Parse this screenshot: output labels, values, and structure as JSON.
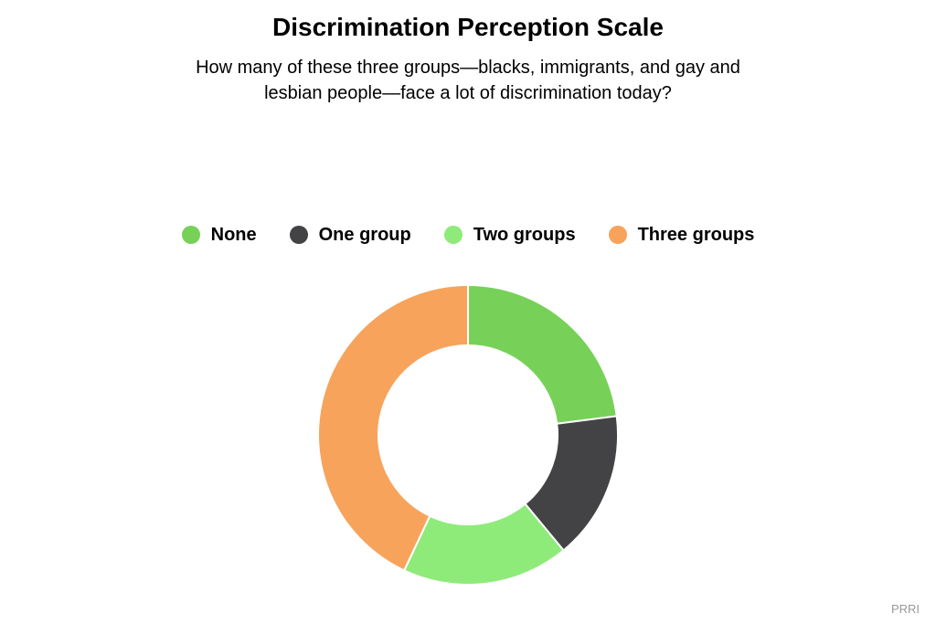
{
  "chart_data": {
    "type": "pie",
    "title": "Discrimination Perception Scale",
    "subtitle": "How many of these three groups—blacks, immigrants, and gay and lesbian people—face a lot of discrimination today?",
    "categories": [
      "None",
      "One group",
      "Two groups",
      "Three groups"
    ],
    "values": [
      23,
      16,
      18,
      43
    ],
    "colors": [
      "#77d158",
      "#434346",
      "#8eeb7a",
      "#f7a35c"
    ],
    "donut": true,
    "legend_position": "top-center",
    "data_labels": false
  },
  "credit": "PRRI"
}
